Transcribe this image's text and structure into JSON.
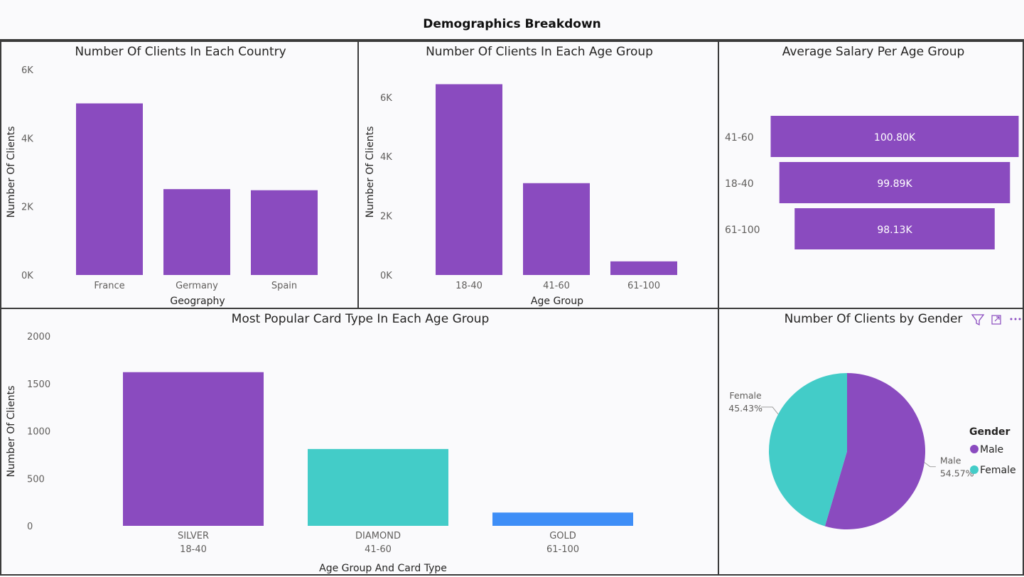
{
  "page": {
    "title": "Demographics Breakdown"
  },
  "colors": {
    "purple": "#8a4bbf",
    "teal": "#43ccc8",
    "blue": "#3e8ef7"
  },
  "icons": [
    "filter-icon",
    "focus-mode-icon",
    "more-options-icon"
  ],
  "chart_data": [
    {
      "id": "country",
      "type": "bar",
      "title": "Number Of Clients In Each Country",
      "xlabel": "Geography",
      "ylabel": "Number Of Clients",
      "categories": [
        "France",
        "Germany",
        "Spain"
      ],
      "values": [
        5014,
        2509,
        2477
      ],
      "ylim": [
        0,
        6000
      ],
      "yticks": [
        0,
        2000,
        4000,
        6000
      ],
      "ytick_labels": [
        "0K",
        "2K",
        "4K",
        "6K"
      ]
    },
    {
      "id": "agegroup",
      "type": "bar",
      "title": "Number Of Clients In Each Age Group",
      "xlabel": "Age Group",
      "ylabel": "Number Of Clients",
      "categories": [
        "18-40",
        "41-60",
        "61-100"
      ],
      "values": [
        6440,
        3100,
        460
      ],
      "ylim": [
        0,
        6500
      ],
      "yticks": [
        0,
        2000,
        4000,
        6000
      ],
      "ytick_labels": [
        "0K",
        "2K",
        "4K",
        "6K"
      ]
    },
    {
      "id": "salary",
      "type": "bar",
      "orientation": "horizontal",
      "title": "Average Salary Per Age Group",
      "categories": [
        "41-60",
        "18-40",
        "61-100"
      ],
      "values": [
        100800,
        99890,
        98130
      ],
      "data_labels": [
        "100.80K",
        "99.89K",
        "98.13K"
      ]
    },
    {
      "id": "cards",
      "type": "bar",
      "title": "Most Popular Card Type In Each Age Group",
      "xlabel": "Age Group And Card Type",
      "ylabel": "Number Of Clients",
      "categories": [
        "SILVER",
        "DIAMOND",
        "GOLD"
      ],
      "subcategories": [
        "18-40",
        "41-60",
        "61-100"
      ],
      "values": [
        1620,
        810,
        140
      ],
      "bar_colors": [
        "#8a4bbf",
        "#43ccc8",
        "#3e8ef7"
      ],
      "ylim": [
        0,
        2000
      ],
      "yticks": [
        0,
        500,
        1000,
        1500,
        2000
      ],
      "ytick_labels": [
        "0",
        "500",
        "1000",
        "1500",
        "2000"
      ]
    },
    {
      "id": "gender",
      "type": "pie",
      "title": "Number Of Clients by Gender",
      "legend_title": "Gender",
      "legend_position": "right",
      "slices": [
        {
          "name": "Male",
          "percent": 54.57,
          "label": "54.57%",
          "color": "#8a4bbf"
        },
        {
          "name": "Female",
          "percent": 45.43,
          "label": "45.43%",
          "color": "#43ccc8"
        }
      ]
    }
  ]
}
